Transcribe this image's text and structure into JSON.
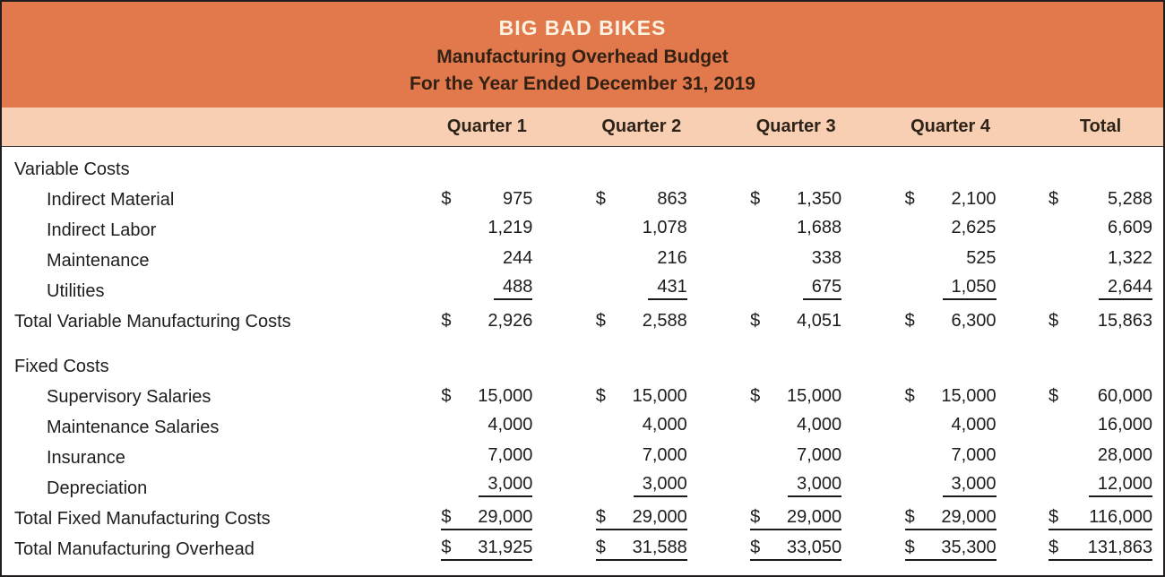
{
  "header": {
    "company": "BIG BAD BIKES",
    "report": "Manufacturing Overhead Budget",
    "period": "For the Year Ended December 31, 2019"
  },
  "table": {
    "columns": [
      "",
      "Quarter 1",
      "Quarter 2",
      "Quarter 3",
      "Quarter 4",
      "Total"
    ],
    "rows": [
      {
        "type": "section",
        "label": "Variable Costs"
      },
      {
        "type": "item",
        "indent": 1,
        "label": "Indirect Material",
        "values": [
          "$ 975",
          "$ 863",
          "$ 1,350",
          "$ 2,100",
          "$ 5,288"
        ]
      },
      {
        "type": "item",
        "indent": 1,
        "label": "Indirect Labor",
        "values": [
          "1,219",
          "1,078",
          "1,688",
          "2,625",
          "6,609"
        ]
      },
      {
        "type": "item",
        "indent": 1,
        "label": "Maintenance",
        "values": [
          "244",
          "216",
          "338",
          "525",
          "1,322"
        ]
      },
      {
        "type": "item",
        "indent": 1,
        "label": "Utilities",
        "underline": true,
        "values": [
          "488",
          "431",
          "675",
          "1,050",
          "2,644"
        ]
      },
      {
        "type": "total",
        "label": "Total Variable Manufacturing Costs",
        "values": [
          "$ 2,926",
          "$ 2,588",
          "$ 4,051",
          "$ 6,300",
          "$ 15,863"
        ]
      },
      {
        "type": "spacer"
      },
      {
        "type": "section",
        "label": "Fixed Costs"
      },
      {
        "type": "item",
        "indent": 1,
        "label": "Supervisory Salaries",
        "values": [
          "$15,000",
          "$15,000",
          "$15,000",
          "$15,000",
          "$ 60,000"
        ]
      },
      {
        "type": "item",
        "indent": 1,
        "label": "Maintenance Salaries",
        "values": [
          "4,000",
          "4,000",
          "4,000",
          "4,000",
          "16,000"
        ]
      },
      {
        "type": "item",
        "indent": 1,
        "label": "Insurance",
        "values": [
          "7,000",
          "7,000",
          "7,000",
          "7,000",
          "28,000"
        ]
      },
      {
        "type": "item",
        "indent": 1,
        "label": "Depreciation",
        "underline": true,
        "values": [
          "3,000",
          "3,000",
          "3,000",
          "3,000",
          "12,000"
        ]
      },
      {
        "type": "total",
        "label": "Total Fixed Manufacturing Costs",
        "underline": true,
        "values": [
          "$29,000",
          "$29,000",
          "$29,000",
          "$29,000",
          "$116,000"
        ]
      },
      {
        "type": "total",
        "label": "Total Manufacturing Overhead",
        "underline": true,
        "values": [
          "$31,925",
          "$31,588",
          "$33,050",
          "$35,300",
          "$131,863"
        ]
      }
    ]
  }
}
